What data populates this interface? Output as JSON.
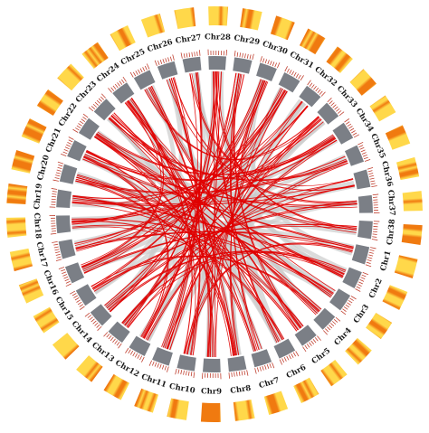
{
  "diagram": {
    "type": "circos",
    "chromosomes": [
      "Chr1",
      "Chr2",
      "Chr3",
      "Chr4",
      "Chr5",
      "Chr6",
      "Chr7",
      "Chr8",
      "Chr9",
      "Chr10",
      "Chr11",
      "Chr12",
      "Chr13",
      "Chr14",
      "Chr15",
      "Chr16",
      "Chr17",
      "Chr18",
      "Chr19",
      "Chr20",
      "Chr21",
      "Chr22",
      "Chr23",
      "Chr24",
      "Chr25",
      "Chr26",
      "Chr27",
      "Chr28",
      "Chr29",
      "Chr30",
      "Chr31",
      "Chr32",
      "Chr33",
      "Chr34",
      "Chr35",
      "Chr36",
      "Chr37",
      "Chr38"
    ],
    "colors": {
      "chromosome_band": "#7b7f86",
      "density_light": "#ffd84a",
      "density_dark": "#f07a10",
      "highlight_link": "#e00000",
      "background_link": "#cccccc",
      "tick": "#c04030"
    },
    "highlight_links": [
      [
        "Chr1",
        "Chr21"
      ],
      [
        "Chr1",
        "Chr10"
      ],
      [
        "Chr2",
        "Chr22"
      ],
      [
        "Chr2",
        "Chr13"
      ],
      [
        "Chr3",
        "Chr20"
      ],
      [
        "Chr3",
        "Chr24"
      ],
      [
        "Chr4",
        "Chr15"
      ],
      [
        "Chr4",
        "Chr23"
      ],
      [
        "Chr5",
        "Chr19"
      ],
      [
        "Chr5",
        "Chr25"
      ],
      [
        "Chr6",
        "Chr28"
      ],
      [
        "Chr6",
        "Chr18"
      ],
      [
        "Chr7",
        "Chr29"
      ],
      [
        "Chr7",
        "Chr21"
      ],
      [
        "Chr8",
        "Chr30"
      ],
      [
        "Chr8",
        "Chr22"
      ],
      [
        "Chr9",
        "Chr31"
      ],
      [
        "Chr9",
        "Chr24"
      ],
      [
        "Chr10",
        "Chr32"
      ],
      [
        "Chr10",
        "Chr26"
      ],
      [
        "Chr11",
        "Chr33"
      ],
      [
        "Chr11",
        "Chr27"
      ],
      [
        "Chr12",
        "Chr34"
      ],
      [
        "Chr12",
        "Chr29"
      ],
      [
        "Chr13",
        "Chr35"
      ],
      [
        "Chr13",
        "Chr28"
      ],
      [
        "Chr14",
        "Chr36"
      ],
      [
        "Chr14",
        "Chr31"
      ],
      [
        "Chr15",
        "Chr37"
      ],
      [
        "Chr15",
        "Chr30"
      ],
      [
        "Chr16",
        "Chr38"
      ],
      [
        "Chr16",
        "Chr32"
      ],
      [
        "Chr17",
        "Chr33"
      ],
      [
        "Chr17",
        "Chr1"
      ],
      [
        "Chr18",
        "Chr34"
      ],
      [
        "Chr18",
        "Chr3"
      ],
      [
        "Chr19",
        "Chr36"
      ],
      [
        "Chr19",
        "Chr2"
      ],
      [
        "Chr20",
        "Chr35"
      ],
      [
        "Chr20",
        "Chr5"
      ],
      [
        "Chr21",
        "Chr37"
      ],
      [
        "Chr22",
        "Chr4"
      ],
      [
        "Chr23",
        "Chr38"
      ],
      [
        "Chr23",
        "Chr6"
      ],
      [
        "Chr24",
        "Chr7"
      ],
      [
        "Chr25",
        "Chr8"
      ],
      [
        "Chr25",
        "Chr33"
      ],
      [
        "Chr26",
        "Chr9"
      ],
      [
        "Chr27",
        "Chr11"
      ],
      [
        "Chr27",
        "Chr36"
      ],
      [
        "Chr28",
        "Chr12"
      ],
      [
        "Chr29",
        "Chr14"
      ],
      [
        "Chr30",
        "Chr16"
      ],
      [
        "Chr31",
        "Chr17"
      ],
      [
        "Chr32",
        "Chr19"
      ],
      [
        "Chr34",
        "Chr21"
      ],
      [
        "Chr35",
        "Chr23"
      ],
      [
        "Chr37",
        "Chr26"
      ],
      [
        "Chr38",
        "Chr28"
      ],
      [
        "Chr24",
        "Chr10"
      ],
      [
        "Chr21",
        "Chr12"
      ],
      [
        "Chr22",
        "Chr34"
      ],
      [
        "Chr28",
        "Chr9"
      ],
      [
        "Chr29",
        "Chr5"
      ],
      [
        "Chr30",
        "Chr11"
      ],
      [
        "Chr20",
        "Chr8"
      ],
      [
        "Chr18",
        "Chr31"
      ],
      [
        "Chr16",
        "Chr24"
      ],
      [
        "Chr14",
        "Chr2"
      ],
      [
        "Chr13",
        "Chr33"
      ]
    ],
    "background_links": [
      [
        "Chr1",
        "Chr18"
      ],
      [
        "Chr2",
        "Chr20"
      ],
      [
        "Chr3",
        "Chr16"
      ],
      [
        "Chr4",
        "Chr19"
      ],
      [
        "Chr5",
        "Chr22"
      ],
      [
        "Chr6",
        "Chr21"
      ],
      [
        "Chr7",
        "Chr24"
      ],
      [
        "Chr8",
        "Chr26"
      ],
      [
        "Chr9",
        "Chr27"
      ],
      [
        "Chr10",
        "Chr29"
      ],
      [
        "Chr11",
        "Chr28"
      ],
      [
        "Chr12",
        "Chr31"
      ],
      [
        "Chr13",
        "Chr30"
      ],
      [
        "Chr14",
        "Chr33"
      ],
      [
        "Chr15",
        "Chr32"
      ],
      [
        "Chr16",
        "Chr35"
      ],
      [
        "Chr17",
        "Chr34"
      ],
      [
        "Chr18",
        "Chr37"
      ],
      [
        "Chr19",
        "Chr38"
      ],
      [
        "Chr20",
        "Chr36"
      ],
      [
        "Chr21",
        "Chr3"
      ],
      [
        "Chr22",
        "Chr6"
      ],
      [
        "Chr23",
        "Chr9"
      ],
      [
        "Chr24",
        "Chr12"
      ],
      [
        "Chr25",
        "Chr14"
      ],
      [
        "Chr26",
        "Chr15"
      ],
      [
        "Chr27",
        "Chr2"
      ],
      [
        "Chr28",
        "Chr4"
      ],
      [
        "Chr29",
        "Chr8"
      ],
      [
        "Chr30",
        "Chr1"
      ],
      [
        "Chr31",
        "Chr6"
      ],
      [
        "Chr32",
        "Chr7"
      ],
      [
        "Chr33",
        "Chr10"
      ],
      [
        "Chr34",
        "Chr11"
      ],
      [
        "Chr35",
        "Chr13"
      ],
      [
        "Chr36",
        "Chr17"
      ],
      [
        "Chr37",
        "Chr18"
      ],
      [
        "Chr38",
        "Chr22"
      ],
      [
        "Chr2",
        "Chr25"
      ],
      [
        "Chr4",
        "Chr27"
      ],
      [
        "Chr6",
        "Chr30"
      ],
      [
        "Chr8",
        "Chr32"
      ],
      [
        "Chr10",
        "Chr35"
      ],
      [
        "Chr12",
        "Chr37"
      ],
      [
        "Chr14",
        "Chr20"
      ],
      [
        "Chr16",
        "Chr21"
      ],
      [
        "Chr19",
        "Chr23"
      ],
      [
        "Chr25",
        "Chr3"
      ],
      [
        "Chr27",
        "Chr5"
      ],
      [
        "Chr31",
        "Chr9"
      ]
    ]
  }
}
